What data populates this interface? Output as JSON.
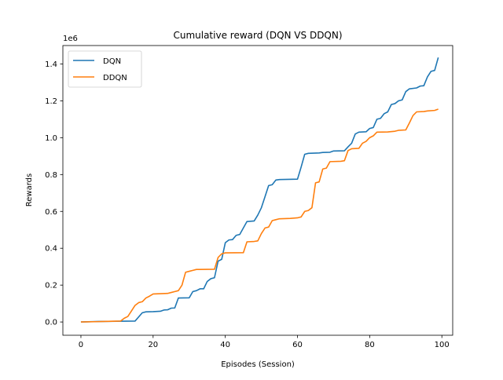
{
  "chart_data": {
    "type": "line",
    "title": "Cumulative reward (DQN VS DDQN)",
    "xlabel": "Episodes (Session)",
    "ylabel": "Rewards",
    "y_offset_label": "1e6",
    "xlim": [
      -5,
      103
    ],
    "ylim": [
      -0.072,
      1.5
    ],
    "x_ticks": [
      0,
      20,
      40,
      60,
      80,
      100
    ],
    "y_ticks": [
      0.0,
      0.2,
      0.4,
      0.6,
      0.8,
      1.0,
      1.2,
      1.4
    ],
    "x_tick_labels": [
      "0",
      "20",
      "40",
      "60",
      "80",
      "100"
    ],
    "y_tick_labels": [
      "0.0",
      "0.2",
      "0.4",
      "0.6",
      "0.8",
      "1.0",
      "1.2",
      "1.4"
    ],
    "grid": false,
    "legend": {
      "position": "top-left"
    },
    "series": [
      {
        "name": "DQN",
        "color": "#1f77b4",
        "points": [
          [
            0,
            0
          ],
          [
            5,
            0.003
          ],
          [
            10,
            0.004
          ],
          [
            15,
            0.005
          ],
          [
            17,
            0.05
          ],
          [
            18,
            0.055
          ],
          [
            20,
            0.056
          ],
          [
            22,
            0.058
          ],
          [
            23,
            0.065
          ],
          [
            24,
            0.066
          ],
          [
            25,
            0.075
          ],
          [
            26,
            0.076
          ],
          [
            27,
            0.13
          ],
          [
            30,
            0.131
          ],
          [
            31,
            0.165
          ],
          [
            32,
            0.17
          ],
          [
            33,
            0.18
          ],
          [
            34,
            0.18
          ],
          [
            35,
            0.22
          ],
          [
            36,
            0.235
          ],
          [
            37,
            0.24
          ],
          [
            38,
            0.33
          ],
          [
            39,
            0.34
          ],
          [
            40,
            0.43
          ],
          [
            41,
            0.445
          ],
          [
            42,
            0.447
          ],
          [
            43,
            0.47
          ],
          [
            44,
            0.475
          ],
          [
            45,
            0.51
          ],
          [
            46,
            0.545
          ],
          [
            48,
            0.548
          ],
          [
            49,
            0.58
          ],
          [
            50,
            0.62
          ],
          [
            51,
            0.68
          ],
          [
            52,
            0.74
          ],
          [
            53,
            0.745
          ],
          [
            54,
            0.77
          ],
          [
            55,
            0.773
          ],
          [
            60,
            0.775
          ],
          [
            61,
            0.84
          ],
          [
            62,
            0.91
          ],
          [
            63,
            0.915
          ],
          [
            66,
            0.917
          ],
          [
            67,
            0.92
          ],
          [
            69,
            0.921
          ],
          [
            70,
            0.928
          ],
          [
            73,
            0.929
          ],
          [
            74,
            0.95
          ],
          [
            75,
            0.97
          ],
          [
            76,
            1.02
          ],
          [
            77,
            1.03
          ],
          [
            79,
            1.032
          ],
          [
            80,
            1.05
          ],
          [
            81,
            1.055
          ],
          [
            82,
            1.1
          ],
          [
            83,
            1.105
          ],
          [
            84,
            1.13
          ],
          [
            85,
            1.14
          ],
          [
            86,
            1.18
          ],
          [
            87,
            1.185
          ],
          [
            88,
            1.2
          ],
          [
            89,
            1.205
          ],
          [
            90,
            1.25
          ],
          [
            91,
            1.265
          ],
          [
            93,
            1.27
          ],
          [
            94,
            1.28
          ],
          [
            95,
            1.282
          ],
          [
            96,
            1.33
          ],
          [
            97,
            1.36
          ],
          [
            98,
            1.365
          ],
          [
            99,
            1.435
          ]
        ]
      },
      {
        "name": "DDQN",
        "color": "#ff7f0e",
        "points": [
          [
            0,
            0
          ],
          [
            5,
            0.002
          ],
          [
            11,
            0.005
          ],
          [
            12,
            0.02
          ],
          [
            13,
            0.03
          ],
          [
            14,
            0.06
          ],
          [
            15,
            0.09
          ],
          [
            16,
            0.105
          ],
          [
            17,
            0.11
          ],
          [
            18,
            0.13
          ],
          [
            19,
            0.14
          ],
          [
            20,
            0.152
          ],
          [
            24,
            0.155
          ],
          [
            25,
            0.16
          ],
          [
            26,
            0.165
          ],
          [
            27,
            0.17
          ],
          [
            28,
            0.2
          ],
          [
            29,
            0.27
          ],
          [
            30,
            0.275
          ],
          [
            31,
            0.28
          ],
          [
            32,
            0.285
          ],
          [
            37,
            0.286
          ],
          [
            38,
            0.35
          ],
          [
            39,
            0.37
          ],
          [
            40,
            0.375
          ],
          [
            45,
            0.376
          ],
          [
            46,
            0.435
          ],
          [
            48,
            0.437
          ],
          [
            49,
            0.44
          ],
          [
            50,
            0.48
          ],
          [
            51,
            0.51
          ],
          [
            52,
            0.515
          ],
          [
            53,
            0.55
          ],
          [
            54,
            0.555
          ],
          [
            55,
            0.56
          ],
          [
            58,
            0.562
          ],
          [
            60,
            0.565
          ],
          [
            61,
            0.57
          ],
          [
            62,
            0.6
          ],
          [
            63,
            0.605
          ],
          [
            64,
            0.62
          ],
          [
            65,
            0.755
          ],
          [
            66,
            0.76
          ],
          [
            67,
            0.83
          ],
          [
            68,
            0.835
          ],
          [
            69,
            0.87
          ],
          [
            72,
            0.872
          ],
          [
            73,
            0.875
          ],
          [
            74,
            0.93
          ],
          [
            75,
            0.94
          ],
          [
            77,
            0.942
          ],
          [
            78,
            0.97
          ],
          [
            79,
            0.98
          ],
          [
            80,
            1.0
          ],
          [
            81,
            1.01
          ],
          [
            82,
            1.03
          ],
          [
            85,
            1.031
          ],
          [
            87,
            1.035
          ],
          [
            88,
            1.04
          ],
          [
            90,
            1.042
          ],
          [
            91,
            1.08
          ],
          [
            92,
            1.12
          ],
          [
            93,
            1.14
          ],
          [
            95,
            1.142
          ],
          [
            96,
            1.145
          ],
          [
            98,
            1.148
          ],
          [
            99,
            1.155
          ]
        ]
      }
    ]
  }
}
